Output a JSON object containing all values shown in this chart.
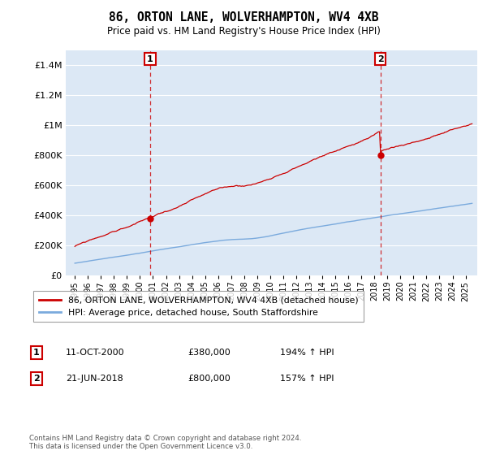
{
  "title": "86, ORTON LANE, WOLVERHAMPTON, WV4 4XB",
  "subtitle": "Price paid vs. HM Land Registry's House Price Index (HPI)",
  "ylim": [
    0,
    1500000
  ],
  "yticks": [
    0,
    200000,
    400000,
    600000,
    800000,
    1000000,
    1200000,
    1400000
  ],
  "sale1": {
    "date_num": 2000.78,
    "price": 380000,
    "label": "1",
    "date_str": "11-OCT-2000",
    "price_str": "£380,000",
    "pct": "194% ↑ HPI"
  },
  "sale2": {
    "date_num": 2018.47,
    "price": 800000,
    "label": "2",
    "date_str": "21-JUN-2018",
    "price_str": "£800,000",
    "pct": "157% ↑ HPI"
  },
  "line1_color": "#cc0000",
  "line2_color": "#7aaadd",
  "plot_bg_color": "#dce8f5",
  "fig_bg_color": "#ffffff",
  "grid_color": "#ffffff",
  "legend1": "86, ORTON LANE, WOLVERHAMPTON, WV4 4XB (detached house)",
  "legend2": "HPI: Average price, detached house, South Staffordshire",
  "footnote": "Contains HM Land Registry data © Crown copyright and database right 2024.\nThis data is licensed under the Open Government Licence v3.0.",
  "sale1_box_color": "#cc0000",
  "sale2_box_color": "#cc0000"
}
